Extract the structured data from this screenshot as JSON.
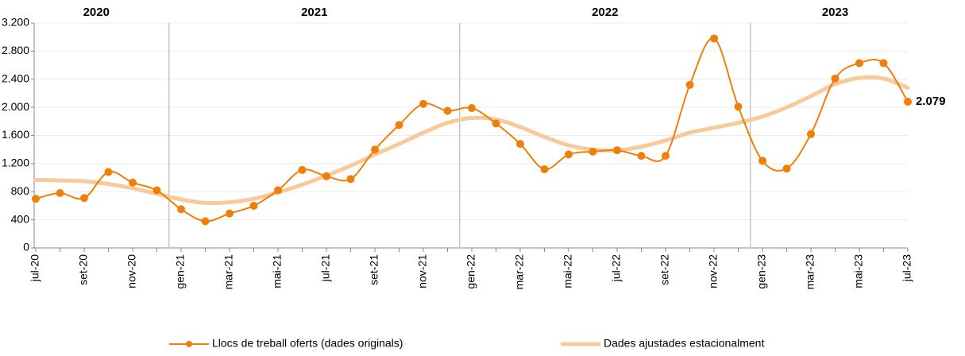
{
  "chart_data": {
    "type": "line",
    "categories": [
      "jul-20",
      null,
      "set-20",
      null,
      "nov-20",
      null,
      "gen-21",
      null,
      "mar-21",
      null,
      "mai-21",
      null,
      "jul-21",
      null,
      "set-21",
      null,
      "nov-21",
      null,
      "gen-22",
      null,
      "mar-22",
      null,
      "mai-22",
      null,
      "jul-22",
      null,
      "set-22",
      null,
      "nov-22",
      null,
      "gen-23",
      null,
      "mar-23",
      null,
      "mai-23",
      null,
      "jul-23"
    ],
    "x_groups": [
      {
        "label": "2020",
        "count": 6
      },
      {
        "label": "2021",
        "count": 12
      },
      {
        "label": "2022",
        "count": 12
      },
      {
        "label": "2023",
        "count": 7
      }
    ],
    "series": [
      {
        "name": "Llocs de treball oferts (dades originals)",
        "color": "#f07f09",
        "smooth": true,
        "markers": true,
        "values": [
          700,
          780,
          710,
          1080,
          930,
          820,
          550,
          380,
          490,
          600,
          820,
          1110,
          1020,
          980,
          1400,
          1750,
          2050,
          1950,
          1990,
          1770,
          1480,
          1120,
          1330,
          1370,
          1390,
          1310,
          1310,
          2320,
          2980,
          2010,
          1240,
          1130,
          1620,
          2410,
          2630,
          2630,
          2079
        ],
        "value_labels": [
          null,
          null,
          null,
          null,
          null,
          null,
          null,
          null,
          null,
          null,
          null,
          null,
          null,
          null,
          null,
          null,
          null,
          null,
          null,
          null,
          null,
          null,
          null,
          null,
          null,
          null,
          null,
          null,
          null,
          null,
          null,
          null,
          null,
          null,
          null,
          null,
          "2.079"
        ]
      },
      {
        "name": "Dades ajustades estacionalment",
        "color": "#f8c99a",
        "smooth": true,
        "markers": false,
        "values": [
          970,
          960,
          950,
          910,
          850,
          770,
          690,
          640,
          650,
          700,
          790,
          900,
          1030,
          1170,
          1330,
          1480,
          1640,
          1780,
          1850,
          1830,
          1720,
          1580,
          1460,
          1400,
          1390,
          1440,
          1530,
          1640,
          1710,
          1780,
          1870,
          2000,
          2160,
          2330,
          2420,
          2410,
          2280
        ]
      }
    ],
    "ylim": [
      0,
      3200
    ],
    "yticks": [
      0,
      400,
      800,
      {
        "value": 1200,
        "label": "1.200"
      },
      {
        "value": 1600,
        "label": "1.600"
      },
      {
        "value": 2000,
        "label": "2.000"
      },
      {
        "value": 2400,
        "label": "2.400"
      },
      {
        "value": 2800,
        "label": "2.800"
      },
      {
        "value": 3200,
        "label": "3.200"
      }
    ],
    "grid": true,
    "legend": "bottom"
  }
}
